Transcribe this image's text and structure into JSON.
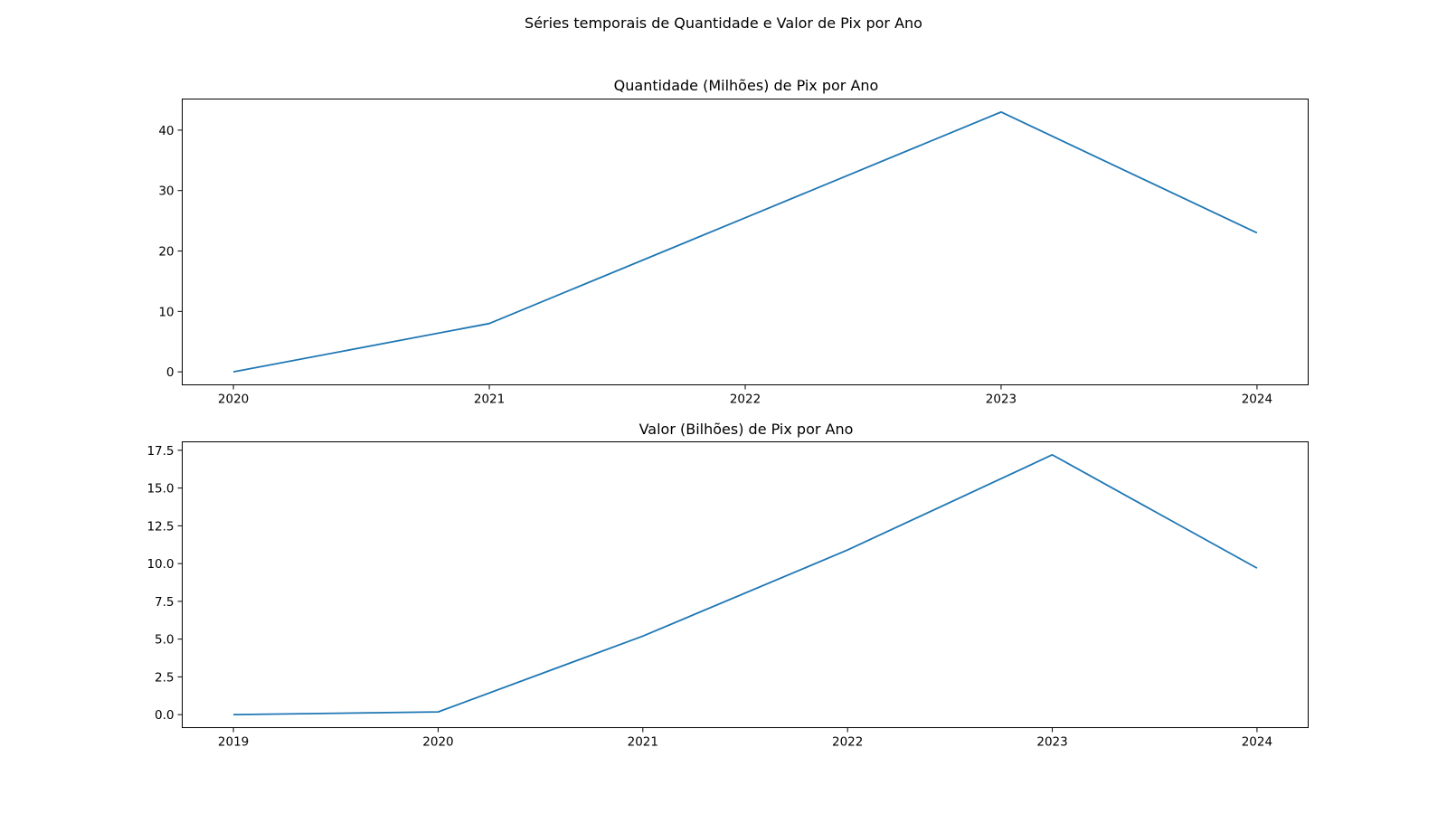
{
  "figure": {
    "suptitle": "Séries temporais de Quantidade e Valor de Pix por Ano"
  },
  "line_color": "#1f77b4",
  "chart_data": [
    {
      "type": "line",
      "title": "Quantidade (Milhões) de Pix por Ano",
      "xlabel": "",
      "ylabel": "",
      "x": [
        2020,
        2021,
        2022,
        2023,
        2024
      ],
      "series": [
        {
          "values": [
            0,
            8,
            25.5,
            43,
            23
          ]
        }
      ],
      "xlim": [
        2019.8,
        2024.2
      ],
      "ylim": [
        -2.15,
        45.15
      ],
      "xticks": [
        "2020",
        "2021",
        "2022",
        "2023",
        "2024"
      ],
      "yticks": [
        "0",
        "10",
        "20",
        "30",
        "40"
      ],
      "ytick_values": [
        0,
        10,
        20,
        30,
        40
      ],
      "grid": false,
      "legend": "none"
    },
    {
      "type": "line",
      "title": "Valor (Bilhões) de Pix por Ano",
      "xlabel": "",
      "ylabel": "",
      "x": [
        2019,
        2020,
        2021,
        2022,
        2023,
        2024
      ],
      "series": [
        {
          "values": [
            0,
            0.18,
            5.2,
            10.9,
            17.2,
            9.7
          ]
        }
      ],
      "xlim": [
        2018.75,
        2024.25
      ],
      "ylim": [
        -0.86,
        18.06
      ],
      "xticks": [
        "2019",
        "2020",
        "2021",
        "2022",
        "2023",
        "2024"
      ],
      "yticks": [
        "0.0",
        "2.5",
        "5.0",
        "7.5",
        "10.0",
        "12.5",
        "15.0",
        "17.5"
      ],
      "ytick_values": [
        0,
        2.5,
        5,
        7.5,
        10,
        12.5,
        15,
        17.5
      ],
      "grid": false,
      "legend": "none"
    }
  ]
}
